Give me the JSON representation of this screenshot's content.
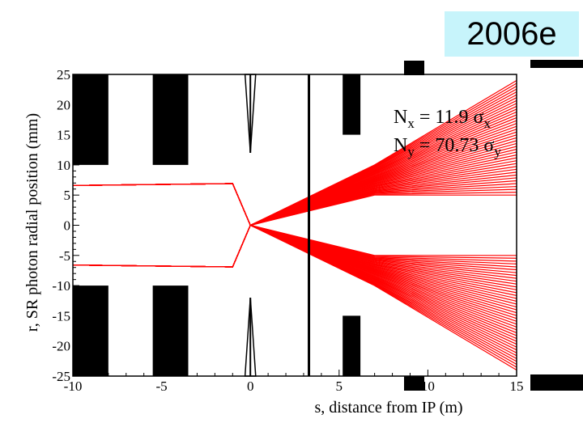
{
  "badge": "2006e",
  "chart_data": {
    "type": "line",
    "title": "",
    "xlabel": "s, distance from IP (m)",
    "ylabel": "r, SR photon radial position (mm)",
    "xlim": [
      -10,
      15
    ],
    "ylim": [
      -25,
      25
    ],
    "x_ticks": [
      -10,
      -5,
      0,
      5,
      10,
      15
    ],
    "y_ticks": [
      -25,
      -20,
      -15,
      -10,
      -5,
      0,
      5,
      10,
      15,
      20,
      25
    ],
    "annotations": [
      {
        "base": "N",
        "sub": "x",
        "eq": " = 11.9 ",
        "sym": "σ",
        "sym_sub": "x"
      },
      {
        "base": "N",
        "sub": "y",
        "eq": " = 70.73 ",
        "sym": "σ",
        "sym_sub": "y"
      }
    ],
    "fan_color": "#ff0000",
    "fan_series": [
      {
        "name": "upper-fan-to-upper",
        "x": [
          -10,
          -1,
          0,
          7,
          15
        ],
        "y_min": [
          6.6,
          6.9,
          0,
          5,
          5
        ],
        "y_max": [
          6.6,
          6.9,
          0,
          10,
          24
        ]
      },
      {
        "name": "lower-fan-to-lower",
        "x": [
          -10,
          -1,
          0,
          7,
          15
        ],
        "y_min": [
          -6.6,
          -6.9,
          0,
          -10,
          -24
        ],
        "y_max": [
          -6.6,
          -6.9,
          0,
          -5,
          -5
        ]
      }
    ],
    "absorbers": [
      {
        "name": "mask-a-top",
        "s": [
          -10,
          -8
        ],
        "r": [
          10,
          25
        ]
      },
      {
        "name": "mask-a-bottom",
        "s": [
          -10,
          -8
        ],
        "r": [
          -25,
          -10
        ]
      },
      {
        "name": "mask-b-top",
        "s": [
          -5.5,
          -3.5
        ],
        "r": [
          10,
          25
        ]
      },
      {
        "name": "mask-b-bottom",
        "s": [
          -5.5,
          -3.5
        ],
        "r": [
          -25,
          -10
        ]
      },
      {
        "name": "mask-c-top",
        "s": [
          5.2,
          6.2
        ],
        "r": [
          15,
          25
        ]
      },
      {
        "name": "mask-c-bottom",
        "s": [
          5.2,
          6.2
        ],
        "r": [
          -25,
          -15
        ]
      }
    ],
    "thin_wall_s": 3.3,
    "ip_cone": {
      "s": [
        -0.3,
        0.3
      ],
      "tip_r": 12
    },
    "grid": false,
    "legend": "none"
  }
}
